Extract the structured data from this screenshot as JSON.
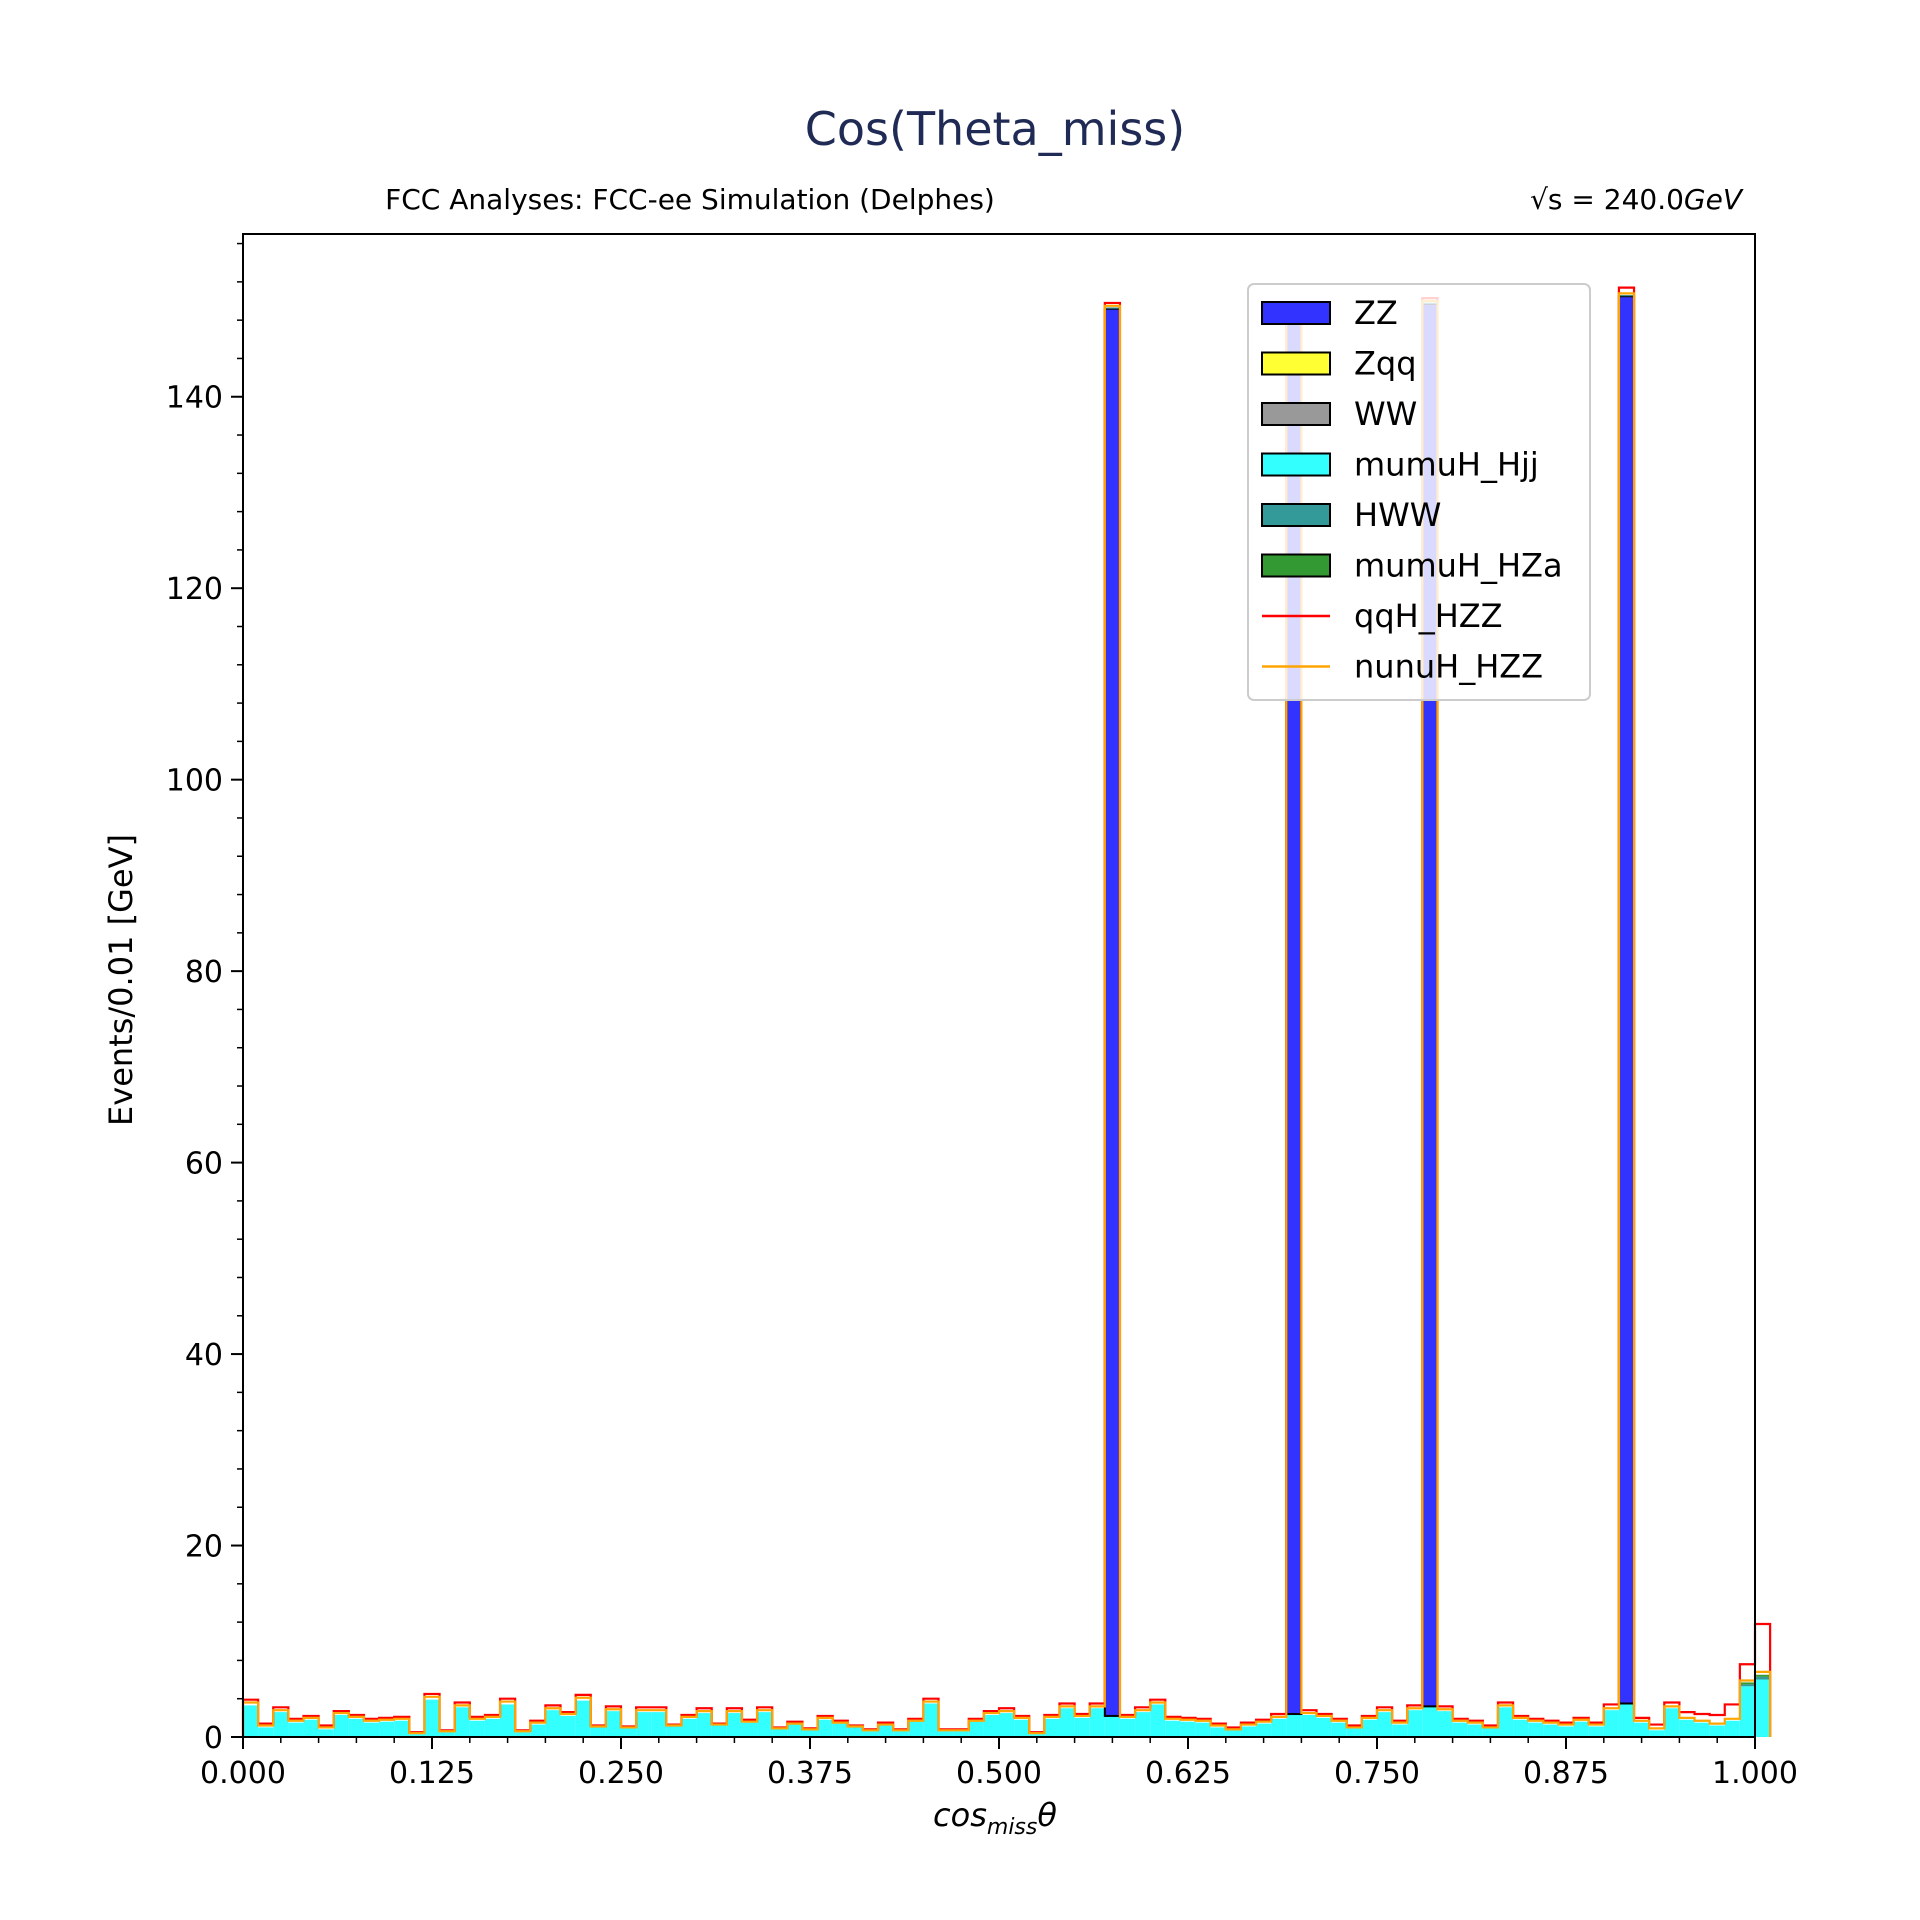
{
  "chart_data": {
    "type": "bar",
    "title": "Cos(Theta_miss)",
    "subtitle_left": "FCC Analyses: FCC-ee Simulation (Delphes)",
    "subtitle_right_prefix": "√s = 240.0",
    "subtitle_right_unit": "GeV",
    "xlabel_main": "cos",
    "xlabel_sub": "miss",
    "xlabel_tail": "θ",
    "ylabel": "Events/0.01 [GeV]",
    "xlim": [
      0.0,
      1.0
    ],
    "ylim": [
      0,
      157
    ],
    "x_ticks": [
      0.0,
      0.125,
      0.25,
      0.375,
      0.5,
      0.625,
      0.75,
      0.875,
      1.0
    ],
    "x_tick_labels": [
      "0.000",
      "0.125",
      "0.250",
      "0.375",
      "0.500",
      "0.625",
      "0.750",
      "0.875",
      "1.000"
    ],
    "y_ticks": [
      0,
      20,
      40,
      60,
      80,
      100,
      120,
      140
    ],
    "y_tick_labels": [
      "0",
      "20",
      "40",
      "60",
      "80",
      "100",
      "120",
      "140"
    ],
    "legend_position": "top-right",
    "bin_width": 0.01,
    "bin_edges_start": 0.0,
    "colors": {
      "ZZ": "#3333ff",
      "Zqq": "#ffff33",
      "WW": "#999999",
      "mumuH_Hjj": "#33ffff",
      "HWW": "#339999",
      "mumuH_HZa": "#339933",
      "qqH_HZZ": "#ff0000",
      "nunuH_HZZ": "#ffa500",
      "title": "#1f2a55"
    },
    "legend": [
      {
        "name": "ZZ",
        "style": "patch"
      },
      {
        "name": "Zqq",
        "style": "patch"
      },
      {
        "name": "WW",
        "style": "patch"
      },
      {
        "name": "mumuH_Hjj",
        "style": "patch"
      },
      {
        "name": "HWW",
        "style": "patch"
      },
      {
        "name": "mumuH_HZa",
        "style": "patch"
      },
      {
        "name": "qqH_HZZ",
        "style": "line"
      },
      {
        "name": "nunuH_HZZ",
        "style": "line"
      }
    ],
    "series": [
      {
        "name": "mumuH_Hjj",
        "values": [
          3.3,
          1.0,
          2.6,
          1.5,
          1.8,
          0.8,
          2.3,
          1.9,
          1.5,
          1.6,
          1.7,
          0.3,
          3.9,
          0.5,
          3.1,
          1.7,
          1.9,
          3.4,
          0.5,
          1.3,
          2.8,
          2.2,
          3.8,
          1.0,
          2.7,
          0.9,
          2.6,
          2.6,
          1.1,
          1.9,
          2.5,
          1.2,
          2.5,
          1.5,
          2.6,
          0.8,
          1.3,
          0.7,
          1.8,
          1.4,
          1.0,
          0.6,
          1.2,
          0.6,
          1.6,
          3.5,
          0.6,
          0.6,
          1.6,
          2.3,
          2.5,
          1.8,
          0.3,
          1.9,
          3.0,
          2.0,
          3.0,
          2.2,
          1.9,
          2.6,
          3.4,
          1.7,
          1.6,
          1.5,
          1.0,
          0.7,
          1.1,
          1.4,
          1.9,
          2.4,
          2.3,
          2.0,
          1.5,
          0.9,
          1.8,
          2.6,
          1.3,
          2.8,
          3.2,
          2.7,
          1.5,
          1.3,
          0.9,
          3.1,
          1.8,
          1.5,
          1.3,
          1.1,
          1.6,
          1.1,
          2.8,
          3.5,
          1.5,
          0.7,
          3.0,
          1.8,
          1.5,
          1.2,
          1.7,
          5.3,
          6.0
        ]
      },
      {
        "name": "ZZ",
        "values": [
          0,
          0,
          0,
          0,
          0,
          0,
          0,
          0,
          0,
          0,
          0,
          0,
          0,
          0,
          0,
          0,
          0,
          0,
          0,
          0,
          0,
          0,
          0,
          0,
          0,
          0,
          0,
          0,
          0,
          0,
          0,
          0,
          0,
          0,
          0,
          0,
          0,
          0,
          0,
          0,
          0,
          0,
          0,
          0,
          0,
          0,
          0,
          0,
          0,
          0,
          0,
          0,
          0,
          0,
          0,
          0,
          0,
          147,
          0,
          0,
          0,
          0,
          0,
          0,
          0,
          0,
          0,
          0,
          0,
          146.5,
          0,
          0,
          0,
          0,
          0,
          0,
          0,
          0,
          146.5,
          0,
          0,
          0,
          0,
          0,
          0,
          0,
          0,
          0,
          0,
          0,
          0,
          147,
          0,
          0,
          0,
          0,
          0,
          0,
          0,
          0,
          0
        ]
      },
      {
        "name": "HWW",
        "values": [
          0,
          0,
          0,
          0,
          0,
          0,
          0,
          0,
          0,
          0,
          0,
          0,
          0,
          0,
          0,
          0,
          0,
          0,
          0,
          0,
          0,
          0,
          0,
          0,
          0,
          0,
          0,
          0,
          0,
          0,
          0,
          0,
          0,
          0,
          0,
          0,
          0,
          0,
          0,
          0,
          0,
          0,
          0,
          0,
          0,
          0,
          0,
          0,
          0,
          0,
          0,
          0,
          0,
          0,
          0,
          0,
          0,
          0.1,
          0,
          0,
          0,
          0,
          0,
          0,
          0,
          0,
          0,
          0,
          0,
          0.1,
          0,
          0,
          0,
          0,
          0,
          0,
          0,
          0,
          0.1,
          0,
          0,
          0,
          0,
          0,
          0,
          0,
          0,
          0,
          0,
          0,
          0,
          0.1,
          0,
          0,
          0,
          0,
          0,
          0,
          0,
          0.2,
          0.3
        ]
      },
      {
        "name": "mumuH_HZa",
        "values": [
          0,
          0,
          0,
          0,
          0,
          0,
          0,
          0,
          0,
          0,
          0,
          0,
          0,
          0,
          0,
          0,
          0,
          0,
          0,
          0,
          0,
          0,
          0,
          0,
          0,
          0,
          0,
          0,
          0,
          0,
          0,
          0,
          0,
          0,
          0,
          0,
          0,
          0,
          0,
          0,
          0,
          0,
          0,
          0,
          0,
          0,
          0,
          0,
          0,
          0,
          0,
          0,
          0,
          0,
          0,
          0,
          0,
          0,
          0,
          0,
          0,
          0,
          0,
          0,
          0,
          0,
          0,
          0,
          0,
          0,
          0,
          0,
          0,
          0,
          0,
          0,
          0,
          0,
          0,
          0,
          0,
          0,
          0,
          0,
          0,
          0,
          0,
          0,
          0,
          0,
          0,
          0,
          0,
          0,
          0,
          0,
          0,
          0,
          0,
          0.2,
          0.2
        ]
      },
      {
        "name": "nunuH_HZZ",
        "values": [
          0.3,
          0.2,
          0.2,
          0.2,
          0.2,
          0.2,
          0.2,
          0.2,
          0.2,
          0.2,
          0.2,
          0.1,
          0.3,
          0.1,
          0.2,
          0.2,
          0.2,
          0.3,
          0.1,
          0.2,
          0.2,
          0.2,
          0.3,
          0.1,
          0.2,
          0.1,
          0.2,
          0.2,
          0.1,
          0.2,
          0.2,
          0.1,
          0.2,
          0.1,
          0.2,
          0.1,
          0.1,
          0.1,
          0.2,
          0.1,
          0.1,
          0.1,
          0.1,
          0.1,
          0.1,
          0.2,
          0.1,
          0.1,
          0.1,
          0.2,
          0.2,
          0.2,
          0.1,
          0.2,
          0.2,
          0.2,
          0.2,
          0.2,
          0.2,
          0.2,
          0.2,
          0.2,
          0.2,
          0.2,
          0.2,
          0.1,
          0.2,
          0.2,
          0.2,
          0.2,
          0.2,
          0.2,
          0.2,
          0.1,
          0.2,
          0.2,
          0.2,
          0.2,
          0.2,
          0.2,
          0.2,
          0.2,
          0.1,
          0.2,
          0.2,
          0.2,
          0.2,
          0.2,
          0.2,
          0.2,
          0.2,
          0.2,
          0.2,
          0.2,
          0.2,
          0.2,
          0.2,
          0.2,
          0.2,
          0.2,
          0.3
        ]
      },
      {
        "name": "qqH_HZZ",
        "values": [
          0.3,
          0.2,
          0.3,
          0.2,
          0.2,
          0.2,
          0.2,
          0.2,
          0.2,
          0.2,
          0.2,
          0.1,
          0.3,
          0.1,
          0.3,
          0.2,
          0.2,
          0.3,
          0.1,
          0.2,
          0.3,
          0.2,
          0.3,
          0.1,
          0.3,
          0.1,
          0.3,
          0.3,
          0.1,
          0.2,
          0.3,
          0.1,
          0.3,
          0.2,
          0.3,
          0.1,
          0.2,
          0.1,
          0.2,
          0.2,
          0.1,
          0.1,
          0.2,
          0.1,
          0.2,
          0.3,
          0.1,
          0.1,
          0.2,
          0.2,
          0.3,
          0.2,
          0.1,
          0.2,
          0.3,
          0.2,
          0.3,
          0.3,
          0.2,
          0.3,
          0.3,
          0.2,
          0.2,
          0.2,
          0.2,
          0.2,
          0.2,
          0.2,
          0.3,
          0.3,
          0.3,
          0.2,
          0.2,
          0.2,
          0.2,
          0.3,
          0.2,
          0.3,
          0.3,
          0.3,
          0.2,
          0.2,
          0.2,
          0.3,
          0.2,
          0.2,
          0.2,
          0.2,
          0.2,
          0.2,
          0.4,
          0.6,
          0.3,
          0.4,
          0.4,
          0.6,
          0.7,
          0.9,
          1.5,
          1.7,
          5.0
        ]
      }
    ]
  }
}
